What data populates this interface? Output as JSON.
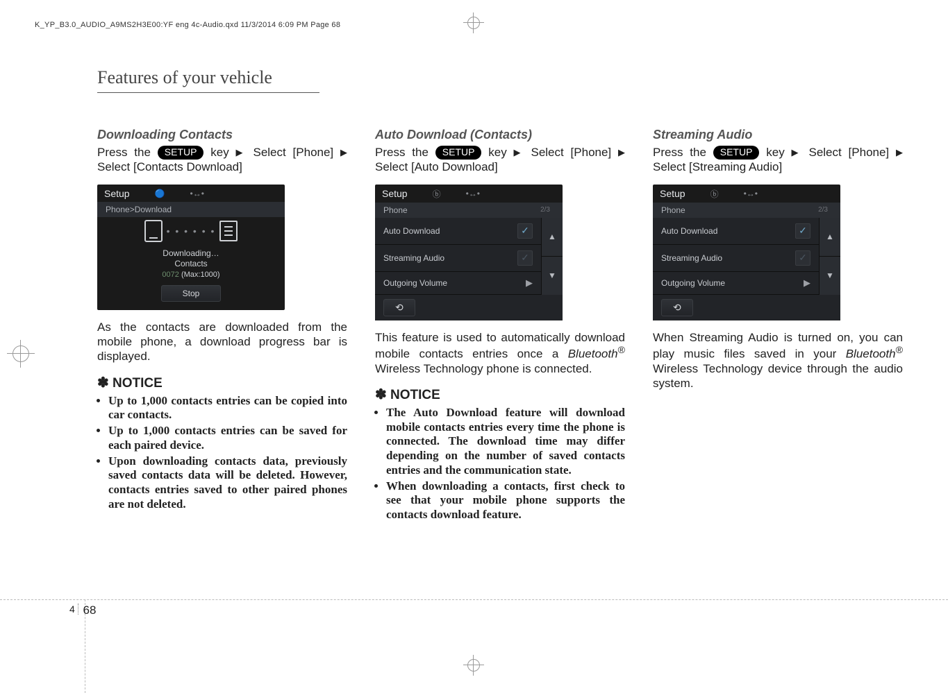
{
  "header_line": "K_YP_B3.0_AUDIO_A9MS2H3E00:YF eng 4c-Audio.qxd  11/3/2014  6:09 PM  Page 68",
  "chapter_title": "Features of your vehicle",
  "page_number_section": "4",
  "page_number": "68",
  "col1": {
    "subhead": "Downloading Contacts",
    "press_text_a": "Press the ",
    "btn": "SETUP",
    "press_text_b": " key",
    "press_text_c": "Select [Phone]",
    "press_text_d": "Select [Contacts Download]",
    "shot": {
      "title": "Setup",
      "crumb": "Phone>Download",
      "line1": "Downloading…",
      "line2": "Contacts",
      "sub_a": "0072",
      "sub_b": " (Max:1000)",
      "stop": "Stop"
    },
    "para": "As the contacts are downloaded from the mobile phone, a download progress bar is displayed.",
    "notice_head": "NOTICE",
    "n1": "Up to 1,000 contacts entries can be copied into car contacts.",
    "n2": "Up to 1,000 contacts entries can be saved for each paired device.",
    "n3": "Upon downloading contacts data, previously saved contacts data will be deleted. However, contacts entries saved to other paired phones are not deleted."
  },
  "col2": {
    "subhead": "Auto Download (Contacts)",
    "press_text_a": "Press the ",
    "btn": "SETUP",
    "press_text_b": " key",
    "press_text_c": "Select [Phone]",
    "press_text_d": "Select [Auto Download]",
    "shot": {
      "title": "Setup",
      "crumb": "Phone",
      "pgn": "2/3",
      "r1": "Auto Download",
      "r2": "Streaming Audio",
      "r3": "Outgoing Volume"
    },
    "para_a": "This feature is used to automatically download mobile contacts entries once a ",
    "para_bt": "Bluetooth",
    "para_reg": "®",
    "para_b": " Wireless Technology phone is connected.",
    "notice_head": "NOTICE",
    "n1": "The Auto Download feature will download mobile contacts entries every time the phone is connected. The download time may differ depending on the number of saved contacts entries and the communication state.",
    "n2": "When downloading a contacts, first check to see that your mobile phone supports the contacts download feature."
  },
  "col3": {
    "subhead": "Streaming Audio",
    "press_text_a": "Press the ",
    "btn": "SETUP",
    "press_text_b": " key",
    "press_text_c": "Select [Phone]",
    "press_text_d": "Select [Streaming Audio]",
    "shot": {
      "title": "Setup",
      "crumb": "Phone",
      "pgn": "2/3",
      "r1": "Auto Download",
      "r2": "Streaming Audio",
      "r3": "Outgoing Volume"
    },
    "para_a": "When Streaming Audio is turned on, you can play music files saved in your ",
    "para_bt": "Bluetooth",
    "para_reg": "®",
    "para_b": " Wireless Technology device through the audio system."
  }
}
